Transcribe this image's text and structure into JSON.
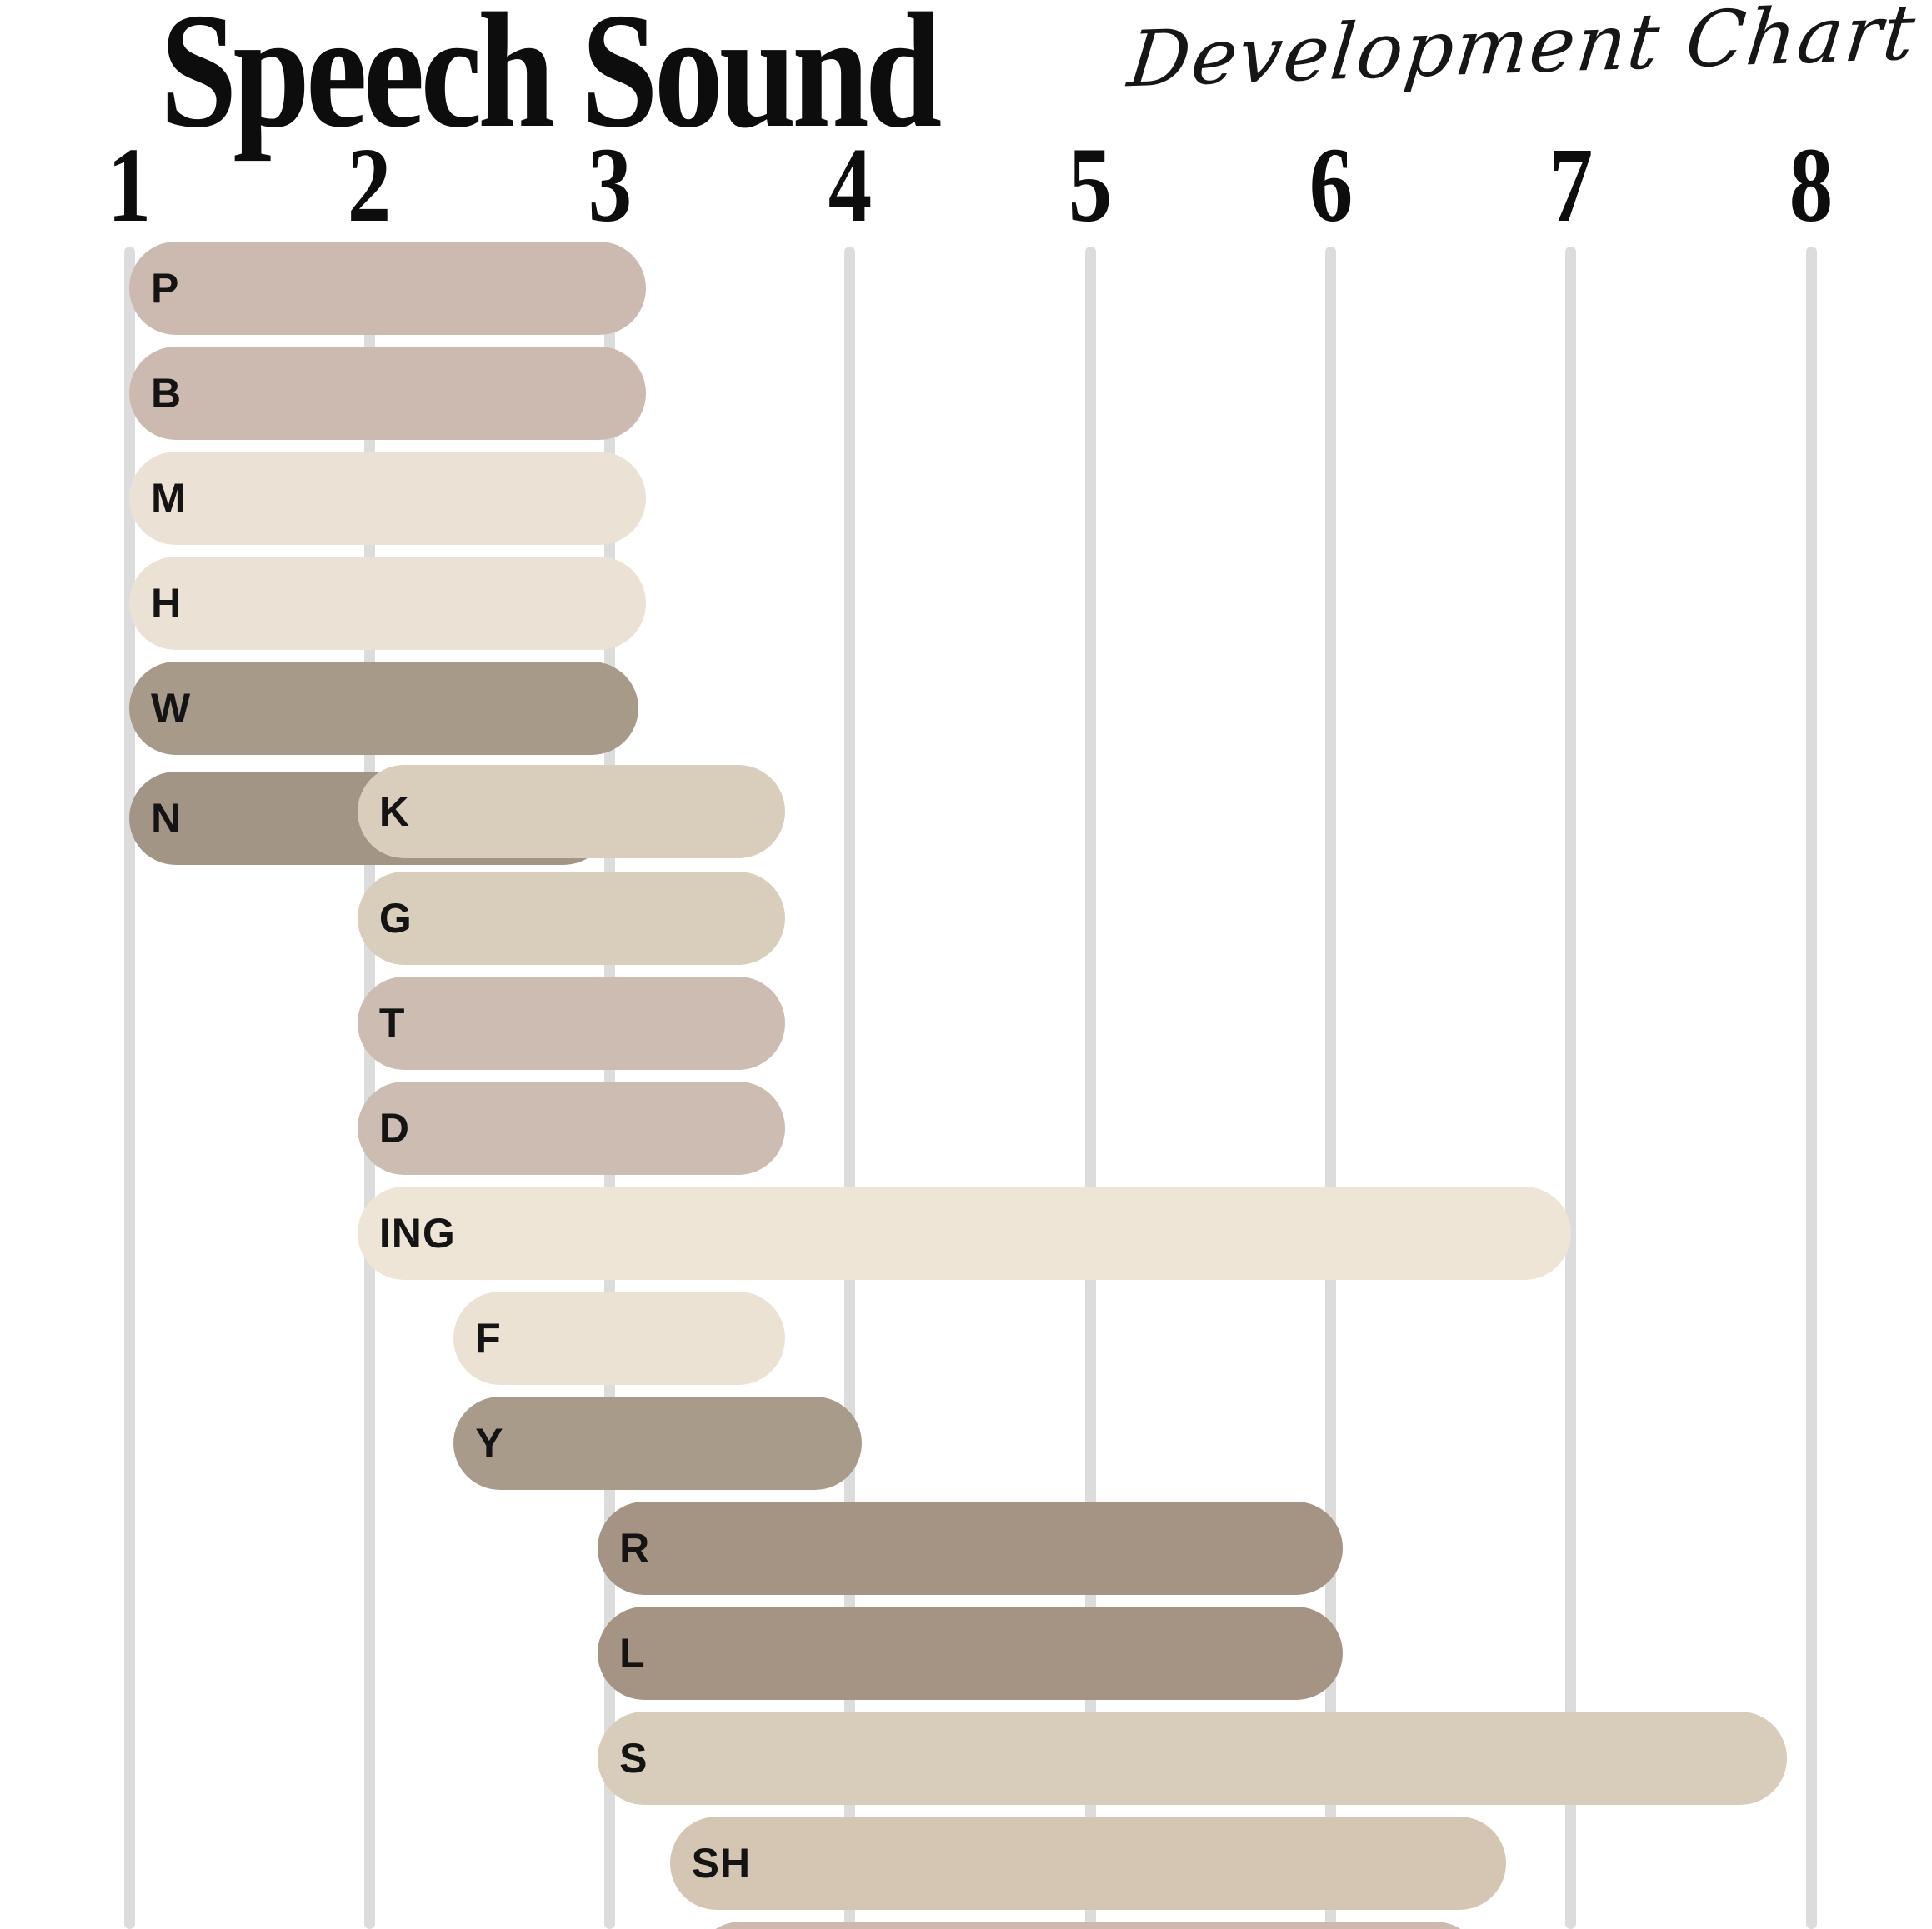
{
  "title": {
    "main": "Speech Sound",
    "script": "Development Chart"
  },
  "axis": {
    "ticks": [
      "1",
      "2",
      "3",
      "4",
      "5",
      "6",
      "7",
      "8"
    ]
  },
  "chart_data": {
    "type": "bar",
    "orientation": "horizontal-range",
    "title": "Speech Sound Development Chart",
    "xlabel": "",
    "xlim": [
      1,
      8
    ],
    "x_ticks": [
      1,
      2,
      3,
      4,
      5,
      6,
      7,
      8
    ],
    "grid": "vertical-lines",
    "legend": "none",
    "bars": [
      {
        "label": "P",
        "age_start": 1.0,
        "age_end": 3.15,
        "row": 0,
        "color": "#ccbab1"
      },
      {
        "label": "B",
        "age_start": 1.0,
        "age_end": 3.15,
        "row": 1,
        "color": "#ccbab1"
      },
      {
        "label": "M",
        "age_start": 1.0,
        "age_end": 3.15,
        "row": 2,
        "color": "#ebe1d4"
      },
      {
        "label": "H",
        "age_start": 1.0,
        "age_end": 3.15,
        "row": 3,
        "color": "#ebe1d4"
      },
      {
        "label": "W",
        "age_start": 1.0,
        "age_end": 3.12,
        "row": 4,
        "color": "#a79a89"
      },
      {
        "label": "N",
        "age_start": 1.0,
        "age_end": 3.0,
        "row": 5,
        "dy": 6,
        "color": "#a39586"
      },
      {
        "label": "K",
        "age_start": 1.95,
        "age_end": 3.73,
        "row": 5,
        "dy": -2,
        "color": "#d9cdbc"
      },
      {
        "label": "G",
        "age_start": 1.95,
        "age_end": 3.73,
        "row": 6,
        "color": "#d9cdbc"
      },
      {
        "label": "T",
        "age_start": 1.95,
        "age_end": 3.73,
        "row": 7,
        "color": "#cdbcb2"
      },
      {
        "label": "D",
        "age_start": 1.95,
        "age_end": 3.73,
        "row": 8,
        "color": "#cdbcb2"
      },
      {
        "label": "ING",
        "age_start": 1.95,
        "age_end": 7.0,
        "row": 9,
        "color": "#eee5d6"
      },
      {
        "label": "F",
        "age_start": 2.35,
        "age_end": 3.73,
        "row": 10,
        "color": "#ece2d3"
      },
      {
        "label": "Y",
        "age_start": 2.35,
        "age_end": 4.05,
        "row": 11,
        "color": "#a99b8a"
      },
      {
        "label": "R",
        "age_start": 2.95,
        "age_end": 6.05,
        "row": 12,
        "color": "#a59484"
      },
      {
        "label": "L",
        "age_start": 2.95,
        "age_end": 6.05,
        "row": 13,
        "color": "#a59484"
      },
      {
        "label": "S",
        "age_start": 2.95,
        "age_end": 7.9,
        "row": 14,
        "color": "#d8ccba"
      },
      {
        "label": "SH",
        "age_start": 3.25,
        "age_end": 6.73,
        "row": 15,
        "color": "#d5c6b4"
      },
      {
        "label": "",
        "age_start": 3.35,
        "age_end": 6.63,
        "row": 16,
        "color": "#cdb9ae"
      }
    ]
  }
}
